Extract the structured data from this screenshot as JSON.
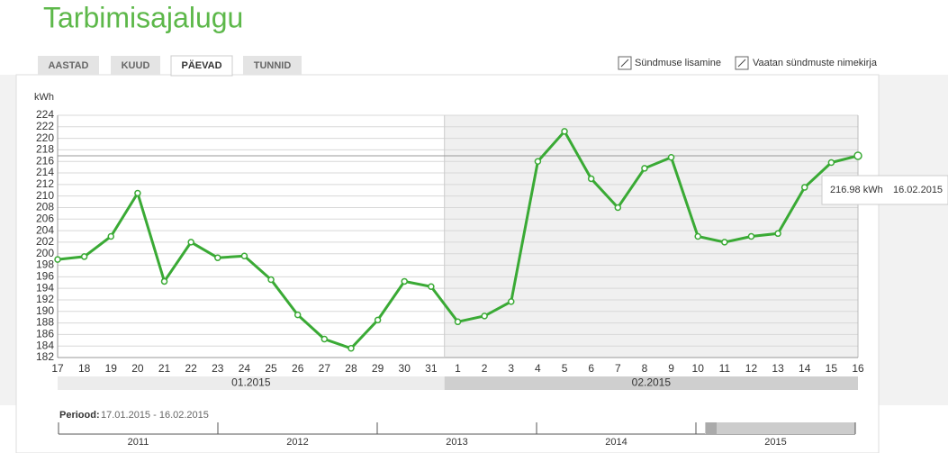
{
  "title": "Tarbimisajalugu",
  "tabs": [
    "AASTAD",
    "KUUD",
    "PÄEVAD",
    "TUNNID"
  ],
  "actions": [
    "Sündmuse lisamine",
    "Vaatan sündmuste nimekirja"
  ],
  "chart_data": {
    "type": "line",
    "y_label": "kWh",
    "color": "#3aaa35",
    "categories": [
      "17",
      "18",
      "19",
      "20",
      "21",
      "22",
      "23",
      "24",
      "25",
      "26",
      "27",
      "28",
      "29",
      "30",
      "31",
      "1",
      "2",
      "3",
      "4",
      "5",
      "6",
      "7",
      "8",
      "9",
      "10",
      "11",
      "12",
      "13",
      "14",
      "15",
      "16"
    ],
    "values": [
      199,
      199.5,
      203,
      210.5,
      195.2,
      202,
      199.3,
      199.6,
      195.5,
      189.4,
      185.2,
      183.6,
      188.5,
      195.2,
      194.3,
      188.2,
      189.2,
      191.7,
      216,
      221.2,
      213,
      208,
      214.8,
      216.7,
      203,
      202,
      203,
      203.5,
      211.5,
      215.8,
      216.98
    ],
    "month_groups": [
      "01.2015",
      "02.2015"
    ],
    "ylim": [
      182,
      224
    ],
    "yticks": [
      182,
      184,
      186,
      188,
      190,
      192,
      194,
      196,
      198,
      200,
      202,
      204,
      206,
      208,
      210,
      212,
      214,
      216,
      218,
      220,
      222,
      224
    ],
    "grid": true,
    "tooltip": {
      "label": "216.98 kWh",
      "date": "16.02.2015"
    }
  },
  "period": {
    "label": "Periood:",
    "value": "17.01.2015 - 16.02.2015"
  },
  "timeline": [
    "2011",
    "2012",
    "2013",
    "2014",
    "2015"
  ]
}
